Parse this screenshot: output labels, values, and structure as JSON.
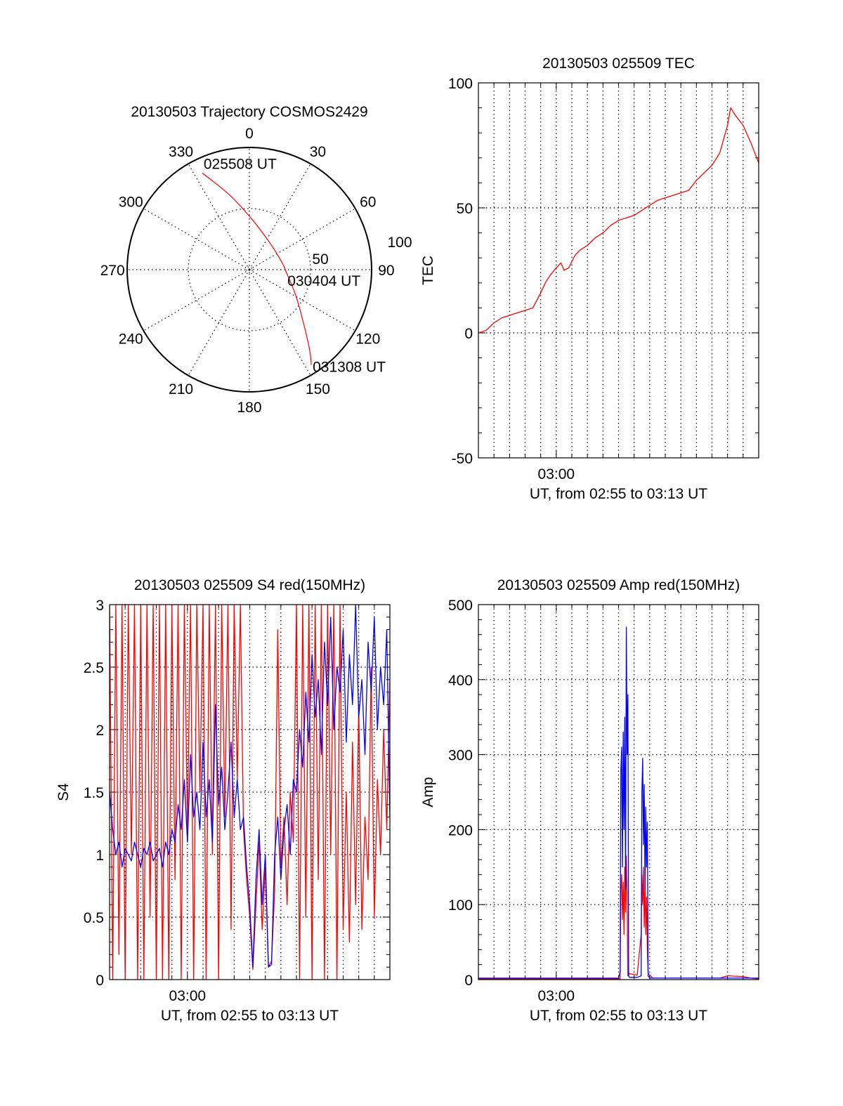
{
  "chart_data": [
    {
      "type": "polar",
      "title": "20130503 Trajectory COSMOS2429",
      "angle_ticks": [
        0,
        30,
        60,
        90,
        120,
        150,
        180,
        210,
        240,
        270,
        300,
        330
      ],
      "angle_labels": [
        "0",
        "30",
        "60",
        "90",
        "120",
        "150",
        "180",
        "210",
        "240",
        "270",
        "300",
        "330"
      ],
      "radial_ticks": [
        50,
        100
      ],
      "radial_labels": [
        "50",
        "100"
      ],
      "rlim": [
        0,
        100
      ],
      "grid": true,
      "series": [
        {
          "name": "trajectory",
          "color": "#ff0000",
          "points": [
            [
              334,
              88
            ],
            [
              345,
              63.5
            ],
            [
              1.5,
              42.5
            ],
            [
              30,
              29
            ],
            [
              58,
              26
            ],
            [
              82,
              28
            ],
            [
              93,
              30
            ],
            [
              122,
              46
            ],
            [
              142,
              79
            ],
            [
              147,
              93
            ]
          ]
        }
      ],
      "annotations": [
        {
          "text": "025508 UT",
          "az": 334,
          "r": 88
        },
        {
          "text": "030404 UT",
          "az": 82,
          "r": 28
        },
        {
          "text": "031308 UT",
          "az": 147,
          "r": 93
        }
      ]
    },
    {
      "type": "line",
      "title": "20130503 025509 TEC",
      "xlabel": "UT, from 02:55 to 03:13 UT",
      "ylabel": "TEC",
      "xlim_minutes": [
        0,
        18
      ],
      "x_tick_labels": [
        {
          "minute": 5,
          "label": "03:00"
        }
      ],
      "ylim": [
        -50,
        100
      ],
      "y_ticks": [
        -50,
        0,
        50,
        100
      ],
      "y_tick_labels": [
        "-50",
        "0",
        "50",
        "100"
      ],
      "grid": true,
      "series": [
        {
          "name": "TEC",
          "color": "#ff0000",
          "x": [
            0,
            0.5,
            1,
            1.5,
            2,
            2.5,
            3,
            3.5,
            4,
            4.3,
            4.6,
            5,
            5.3,
            5.5,
            5.8,
            6.2,
            6.5,
            7,
            7.5,
            8,
            8.5,
            9,
            9.5,
            10,
            10.5,
            11,
            11.5,
            12,
            12.5,
            13,
            13.5,
            14,
            14.5,
            15,
            15.5,
            16,
            16.2,
            16.5,
            17,
            17.5,
            18
          ],
          "y": [
            0,
            1,
            4,
            6,
            7,
            8,
            9,
            10,
            16,
            20,
            23,
            26,
            28,
            25,
            26,
            31,
            33,
            35,
            38,
            40,
            43,
            45,
            46,
            47,
            49,
            51,
            53,
            54,
            55,
            56,
            57,
            61,
            64,
            67,
            72,
            83,
            90,
            87,
            83,
            76,
            68
          ]
        }
      ]
    },
    {
      "type": "line",
      "title": "20130503 025509 S4 red(150MHz)",
      "xlabel": "UT, from 02:55 to 03:13 UT",
      "ylabel": "S4",
      "xlim_minutes": [
        0,
        18
      ],
      "x_tick_labels": [
        {
          "minute": 5,
          "label": "03:00"
        }
      ],
      "ylim": [
        0,
        3
      ],
      "y_ticks": [
        0,
        0.5,
        1,
        1.5,
        2,
        2.5,
        3
      ],
      "y_tick_labels": [
        "0",
        "0.5",
        "1",
        "1.5",
        "2",
        "2.5",
        "3"
      ],
      "grid": true,
      "sample_step_minutes": 0.2,
      "series": [
        {
          "name": "red",
          "color": "#ff0000",
          "values": [
            3,
            0,
            3,
            0.2,
            3,
            0,
            3,
            1.0,
            3,
            0,
            3,
            0,
            3,
            0.5,
            3,
            0,
            3,
            0,
            3,
            0,
            3,
            0.8,
            3,
            0,
            3,
            1.2,
            3,
            0,
            3,
            1.5,
            3,
            0,
            3,
            1.0,
            3,
            0,
            3,
            1.3,
            3,
            0.4,
            3,
            1.6,
            3,
            1.2,
            0.8,
            0.5,
            0.08,
            0.6,
            1.1,
            0.4,
            0.9,
            0.1,
            0.15,
            0.7,
            2.8,
            0.9,
            1.3,
            0.6,
            1.5,
            1.1,
            3,
            0,
            3,
            0.5,
            3,
            0,
            3,
            0.8,
            3,
            0,
            3,
            1.0,
            3,
            0,
            3,
            0.4,
            1.5,
            0.3,
            1.9,
            0.6,
            2.2,
            0.4,
            1.3,
            0.8,
            2.5,
            0.5,
            1.6,
            1.0,
            2.0,
            1.2,
            2.4
          ]
        },
        {
          "name": "blue",
          "color": "#0000ff",
          "values": [
            1.5,
            1.2,
            1.0,
            1.1,
            0.9,
            1.05,
            1.0,
            0.95,
            1.1,
            1.0,
            0.9,
            1.05,
            1.0,
            1.1,
            0.95,
            1.0,
            1.05,
            0.9,
            1.1,
            1.0,
            1.2,
            1.1,
            1.4,
            1.2,
            1.6,
            1.1,
            1.8,
            1.3,
            1.5,
            1.2,
            1.9,
            1.3,
            1.6,
            1.1,
            2.2,
            1.4,
            1.7,
            1.2,
            1.5,
            1.9,
            1.3,
            1.6,
            1.2,
            1.3,
            0.9,
            0.6,
            0.1,
            0.8,
            1.2,
            0.6,
            1.0,
            0.1,
            0.12,
            1.0,
            1.3,
            0.8,
            1.2,
            1.4,
            1.0,
            1.6,
            1.5,
            2.0,
            1.7,
            2.3,
            1.9,
            2.6,
            2.1,
            2.4,
            1.8,
            2.7,
            2.2,
            2.9,
            2.0,
            2.5,
            2.3,
            2.8,
            1.9,
            2.6,
            2.2,
            3.0,
            2.1,
            2.4,
            1.8,
            2.7,
            2.3,
            2.9,
            2.0,
            2.5,
            2.2,
            2.8,
            1.3
          ]
        }
      ]
    },
    {
      "type": "line",
      "title": "20130503 025509 Amp red(150MHz)",
      "xlabel": "UT, from 02:55 to 03:13 UT",
      "ylabel": "Amp",
      "xlim_minutes": [
        0,
        18
      ],
      "x_tick_labels": [
        {
          "minute": 5,
          "label": "03:00"
        }
      ],
      "ylim": [
        0,
        500
      ],
      "y_ticks": [
        0,
        100,
        200,
        300,
        400,
        500
      ],
      "y_tick_labels": [
        "0",
        "100",
        "200",
        "300",
        "400",
        "500"
      ],
      "grid": true,
      "series": [
        {
          "name": "red",
          "color": "#ff0000",
          "points": [
            [
              0,
              1
            ],
            [
              9.1,
              1
            ],
            [
              9.15,
              120
            ],
            [
              9.2,
              140
            ],
            [
              9.25,
              80
            ],
            [
              9.3,
              130
            ],
            [
              9.35,
              60
            ],
            [
              9.4,
              150
            ],
            [
              9.45,
              90
            ],
            [
              9.5,
              165
            ],
            [
              9.55,
              110
            ],
            [
              9.6,
              5
            ],
            [
              9.7,
              8
            ],
            [
              10.2,
              6
            ],
            [
              10.45,
              60
            ],
            [
              10.5,
              140
            ],
            [
              10.55,
              100
            ],
            [
              10.6,
              150
            ],
            [
              10.65,
              70
            ],
            [
              10.7,
              130
            ],
            [
              10.75,
              60
            ],
            [
              10.8,
              110
            ],
            [
              10.85,
              40
            ],
            [
              10.9,
              8
            ],
            [
              11.2,
              2
            ],
            [
              15.5,
              2
            ],
            [
              16,
              5
            ],
            [
              17,
              4
            ],
            [
              17.5,
              2
            ],
            [
              18,
              1
            ]
          ]
        },
        {
          "name": "blue",
          "color": "#0000ff",
          "points": [
            [
              0,
              2
            ],
            [
              9.0,
              2
            ],
            [
              9.1,
              10
            ],
            [
              9.15,
              280
            ],
            [
              9.2,
              310
            ],
            [
              9.25,
              150
            ],
            [
              9.3,
              330
            ],
            [
              9.35,
              200
            ],
            [
              9.4,
              350
            ],
            [
              9.45,
              120
            ],
            [
              9.5,
              470
            ],
            [
              9.55,
              300
            ],
            [
              9.6,
              380
            ],
            [
              9.65,
              5
            ],
            [
              9.7,
              3
            ],
            [
              10.2,
              3
            ],
            [
              10.45,
              5
            ],
            [
              10.5,
              250
            ],
            [
              10.55,
              295
            ],
            [
              10.6,
              180
            ],
            [
              10.65,
              260
            ],
            [
              10.7,
              120
            ],
            [
              10.75,
              230
            ],
            [
              10.8,
              150
            ],
            [
              10.85,
              210
            ],
            [
              10.9,
              5
            ],
            [
              11,
              2
            ],
            [
              18,
              2
            ]
          ]
        }
      ]
    }
  ]
}
